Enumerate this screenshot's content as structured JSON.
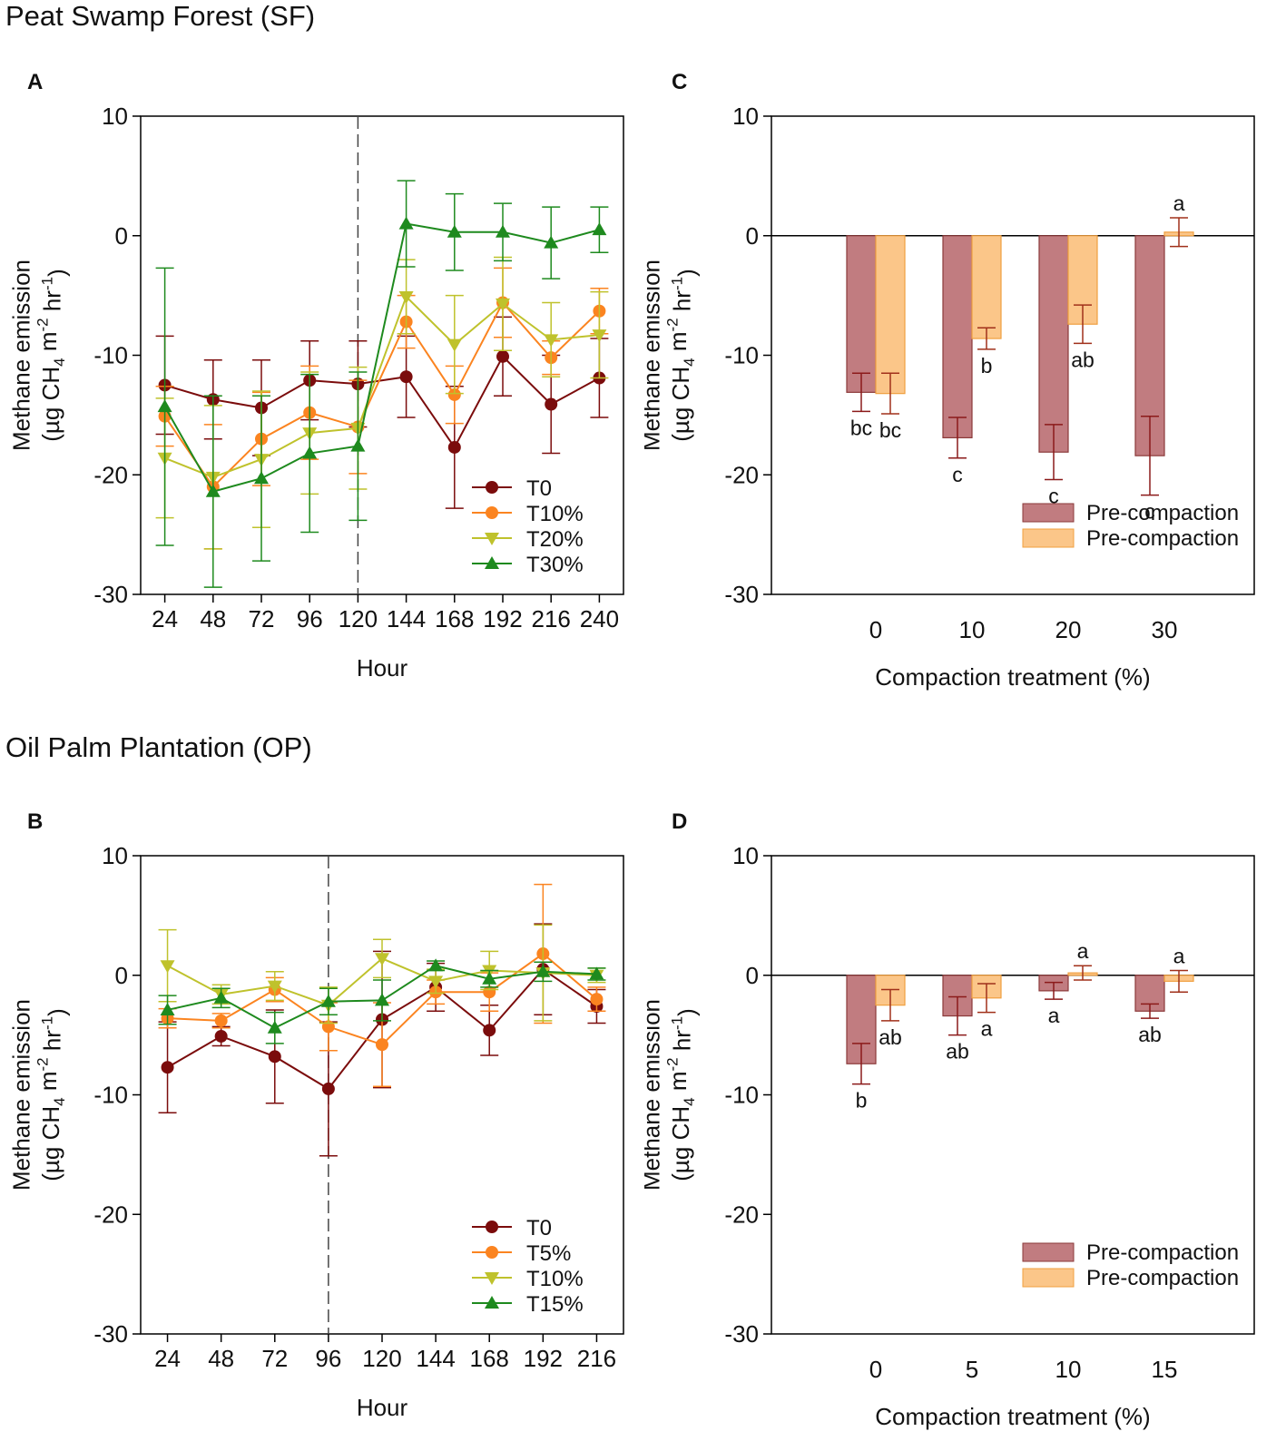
{
  "figure": {
    "section_sf": "Peat Swamp Forest (SF)",
    "section_op": "Oil Palm Plantation (OP)"
  },
  "colors": {
    "t0": "#7B0C0C",
    "t10": "#FB8420",
    "t20": "#BFC22C",
    "t30": "#1E8A1E",
    "pre_fill": "#C17C80",
    "pre_stroke": "#8B3A3A",
    "post_fill": "#FBC689",
    "post_stroke": "#F0A040"
  },
  "chart_data": [
    {
      "id": "A",
      "panel_label": "A",
      "type": "line",
      "xlabel": "Hour",
      "ylabel_line1": "Methane emission",
      "ylabel_line2": "(µg CH4 m-2 hr-1)",
      "ylim": [
        -30,
        10
      ],
      "yticks": [
        10,
        0,
        -10,
        -20,
        -30
      ],
      "x": [
        24,
        48,
        72,
        96,
        120,
        144,
        168,
        192,
        216,
        240
      ],
      "x_tick_labels": [
        "24",
        "48",
        "72",
        "96",
        "120",
        "144",
        "168",
        "192",
        "216",
        "240"
      ],
      "vline_at": 120,
      "legend_position": "bottom-right",
      "series": [
        {
          "name": "T0",
          "marker": "circle",
          "color_key": "t0",
          "values": [
            -12.5,
            -13.7,
            -14.4,
            -12.1,
            -12.4,
            -11.8,
            -17.7,
            -10.1,
            -14.1,
            -11.9
          ],
          "errors": [
            4.1,
            3.3,
            4.0,
            3.3,
            3.6,
            3.4,
            5.1,
            3.3,
            4.1,
            3.3
          ]
        },
        {
          "name": "T10%",
          "marker": "circle",
          "color_key": "t10",
          "values": [
            -15.1,
            -21.0,
            -17.0,
            -14.8,
            -16.0,
            -7.2,
            -13.3,
            -5.6,
            -10.2,
            -6.3
          ],
          "errors": [
            2.5,
            5.2,
            3.9,
            3.9,
            3.9,
            2.2,
            2.4,
            2.9,
            1.4,
            1.9
          ]
        },
        {
          "name": "T20%",
          "marker": "triangle-down",
          "color_key": "t20",
          "values": [
            -18.6,
            -20.2,
            -18.7,
            -16.5,
            -16.1,
            -5.1,
            -9.1,
            -5.7,
            -8.7,
            -8.3
          ],
          "errors": [
            5.0,
            6.0,
            5.7,
            5.1,
            5.1,
            3.1,
            4.1,
            3.9,
            3.1,
            3.6
          ]
        },
        {
          "name": "T30%",
          "marker": "triangle-up",
          "color_key": "t30",
          "values": [
            -14.3,
            -21.4,
            -20.3,
            -18.2,
            -17.6,
            1.0,
            0.3,
            0.3,
            -0.6,
            0.5
          ],
          "errors": [
            11.6,
            8.0,
            6.9,
            6.6,
            6.2,
            3.6,
            3.2,
            2.4,
            3.0,
            1.9
          ]
        }
      ]
    },
    {
      "id": "C",
      "panel_label": "C",
      "type": "bar",
      "xlabel": "Compaction treatment (%)",
      "ylabel_line1": "Methane emission",
      "ylabel_line2": "(µg CH4 m-2 hr-1)",
      "ylim": [
        -30,
        10
      ],
      "yticks": [
        10,
        0,
        -10,
        -20,
        -30
      ],
      "categories": [
        "0",
        "10",
        "20",
        "30"
      ],
      "legend_position": "bottom-right",
      "series": [
        {
          "name": "Pre-compaction",
          "fill_key": "pre_fill",
          "stroke_key": "pre_stroke",
          "values": [
            -13.1,
            -16.9,
            -18.1,
            -18.4
          ],
          "errors": [
            1.6,
            1.7,
            2.3,
            3.3
          ],
          "letters": [
            "bc",
            "c",
            "c",
            "c"
          ]
        },
        {
          "name": "Pre-compaction",
          "fill_key": "post_fill",
          "stroke_key": "post_stroke",
          "values": [
            -13.2,
            -8.6,
            -7.4,
            0.3
          ],
          "errors": [
            1.7,
            0.9,
            1.6,
            1.2
          ],
          "letters": [
            "bc",
            "b",
            "ab",
            "a"
          ]
        }
      ]
    },
    {
      "id": "B",
      "panel_label": "B",
      "type": "line",
      "xlabel": "Hour",
      "ylabel_line1": "Methane emission",
      "ylabel_line2": "(µg CH4 m-2 hr-1)",
      "ylim": [
        -30,
        10
      ],
      "yticks": [
        10,
        0,
        -10,
        -20,
        -30
      ],
      "x": [
        24,
        48,
        72,
        96,
        120,
        144,
        168,
        192,
        216
      ],
      "x_tick_labels": [
        "24",
        "48",
        "72",
        "96",
        "120",
        "144",
        "168",
        "192",
        "216"
      ],
      "vline_at": 96,
      "legend_position": "bottom-right",
      "series": [
        {
          "name": "T0",
          "marker": "circle",
          "color_key": "t0",
          "values": [
            -7.7,
            -5.1,
            -6.8,
            -9.5,
            -3.7,
            -1.0,
            -4.6,
            0.5,
            -2.6
          ],
          "errors": [
            3.8,
            0.8,
            3.9,
            5.6,
            5.7,
            2.0,
            2.1,
            3.8,
            1.4
          ]
        },
        {
          "name": "T5%",
          "marker": "circle",
          "color_key": "t10",
          "values": [
            -3.6,
            -3.8,
            -1.2,
            -4.3,
            -5.8,
            -1.4,
            -1.4,
            1.8,
            -2.0
          ],
          "errors": [
            0.8,
            0.6,
            1.0,
            2.0,
            3.5,
            1.0,
            1.6,
            5.8,
            1.0
          ]
        },
        {
          "name": "T10%",
          "marker": "triangle-down",
          "color_key": "t20",
          "values": [
            0.8,
            -1.6,
            -0.9,
            -2.5,
            1.4,
            -0.5,
            0.4,
            0.2,
            0.0
          ],
          "errors": [
            3.0,
            0.8,
            1.2,
            1.5,
            1.6,
            1.0,
            1.6,
            4.0,
            0.6
          ]
        },
        {
          "name": "T15%",
          "marker": "triangle-up",
          "color_key": "t30",
          "values": [
            -2.9,
            -1.9,
            -4.4,
            -2.2,
            -2.1,
            0.8,
            -0.3,
            0.3,
            0.1
          ],
          "errors": [
            1.2,
            0.8,
            1.3,
            1.1,
            1.7,
            0.4,
            0.7,
            0.8,
            0.5
          ]
        }
      ]
    },
    {
      "id": "D",
      "panel_label": "D",
      "type": "bar",
      "xlabel": "Compaction treatment (%)",
      "ylabel_line1": "Methane emission",
      "ylabel_line2": "(µg CH4 m-2 hr-1)",
      "ylim": [
        -30,
        10
      ],
      "yticks": [
        10,
        0,
        -10,
        -20,
        -30
      ],
      "categories": [
        "0",
        "5",
        "10",
        "15"
      ],
      "legend_position": "bottom-right",
      "series": [
        {
          "name": "Pre-compaction",
          "fill_key": "pre_fill",
          "stroke_key": "pre_stroke",
          "values": [
            -7.4,
            -3.4,
            -1.3,
            -3.0
          ],
          "errors": [
            1.7,
            1.6,
            0.7,
            0.6
          ],
          "letters": [
            "b",
            "ab",
            "a",
            "ab"
          ]
        },
        {
          "name": "Pre-compaction",
          "fill_key": "post_fill",
          "stroke_key": "post_stroke",
          "values": [
            -2.5,
            -1.9,
            0.2,
            -0.5
          ],
          "errors": [
            1.3,
            1.2,
            0.6,
            0.9
          ],
          "letters": [
            "ab",
            "a",
            "a",
            "a"
          ]
        }
      ]
    }
  ]
}
